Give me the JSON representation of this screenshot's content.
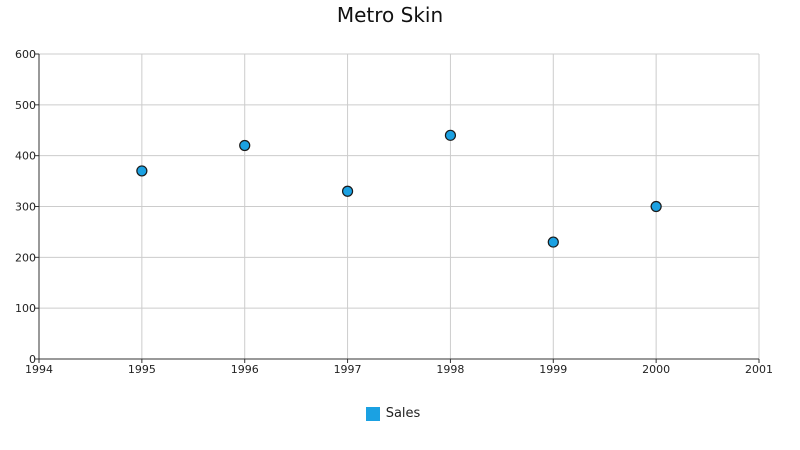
{
  "chart_data": {
    "type": "scatter",
    "title": "Metro Skin",
    "xlabel": "",
    "ylabel": "",
    "xlim": [
      1994,
      2001
    ],
    "ylim": [
      0,
      600
    ],
    "xticks": [
      "1994",
      "1995",
      "1996",
      "1997",
      "1998",
      "1999",
      "2000",
      "2001"
    ],
    "yticks": [
      "0",
      "100",
      "200",
      "300",
      "400",
      "500",
      "600"
    ],
    "grid": true,
    "legend_position": "bottom",
    "series": [
      {
        "name": "Sales",
        "color": "#1ba1e2",
        "x": [
          1995,
          1996,
          1997,
          1998,
          1999,
          2000
        ],
        "y": [
          370,
          420,
          330,
          440,
          230,
          300
        ]
      }
    ]
  }
}
